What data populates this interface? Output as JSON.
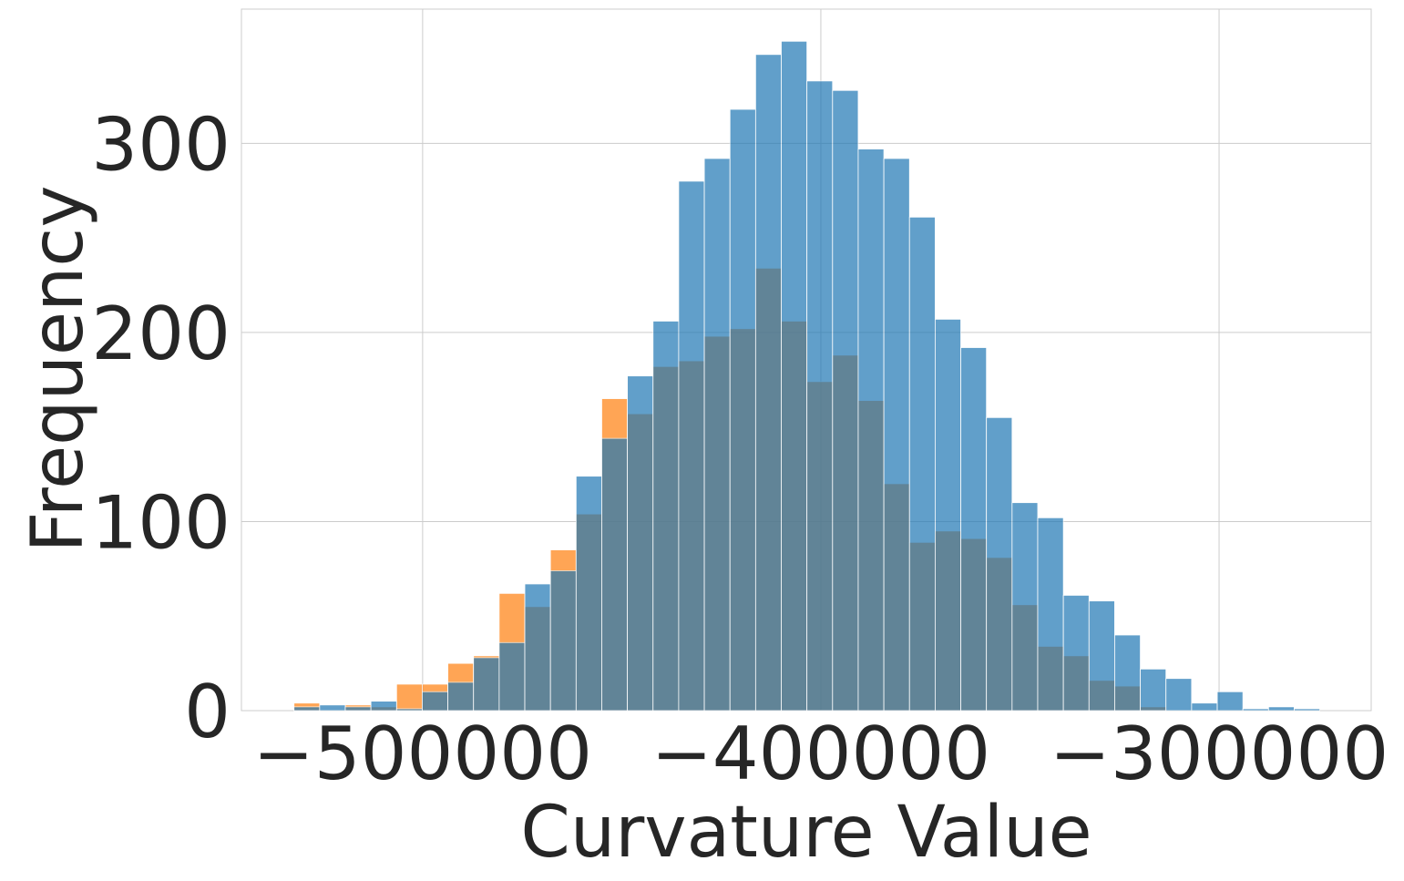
{
  "chart_data": {
    "type": "histogram",
    "xlabel": "Curvature Value",
    "ylabel": "Frequency",
    "bins": [
      -532300,
      -525860,
      -519420,
      -512980,
      -506540,
      -500100,
      -493660,
      -487220,
      -480780,
      -474340,
      -467900,
      -461460,
      -455020,
      -448580,
      -442140,
      -435700,
      -429260,
      -422820,
      -416380,
      -409940,
      -403500,
      -397060,
      -390620,
      -384180,
      -377740,
      -371300,
      -364860,
      -358420,
      -351980,
      -345540,
      -339100,
      -332660,
      -326220,
      -319780,
      -313340,
      -306900,
      -300460,
      -294020,
      -287580,
      -281140,
      -274700
    ],
    "series": [
      {
        "color": "#ff7f0e",
        "values": [
          4,
          0,
          3,
          2,
          14,
          14,
          25,
          29,
          62,
          55,
          85,
          104,
          165,
          157,
          182,
          185,
          198,
          202,
          234,
          206,
          174,
          188,
          164,
          120,
          89,
          95,
          91,
          81,
          56,
          34,
          29,
          16,
          13,
          2,
          0,
          0,
          0,
          0,
          0,
          0
        ]
      },
      {
        "color": "#1f77b4",
        "values": [
          2,
          3,
          2,
          5,
          1,
          10,
          15,
          28,
          36,
          67,
          74,
          124,
          144,
          177,
          206,
          280,
          292,
          318,
          347,
          354,
          333,
          328,
          297,
          292,
          261,
          207,
          192,
          155,
          110,
          102,
          61,
          58,
          40,
          22,
          17,
          4,
          10,
          1,
          2,
          1
        ]
      }
    ],
    "opacity": 0.7,
    "xlim": [
      -545500,
      -261800
    ],
    "ylim": [
      0,
      371
    ],
    "xticks": [
      {
        "value": -500000,
        "label": "−500000"
      },
      {
        "value": -400000,
        "label": "−400000"
      },
      {
        "value": -300000,
        "label": "−300000"
      }
    ],
    "yticks": [
      0,
      100,
      200,
      300
    ],
    "grid": true
  }
}
